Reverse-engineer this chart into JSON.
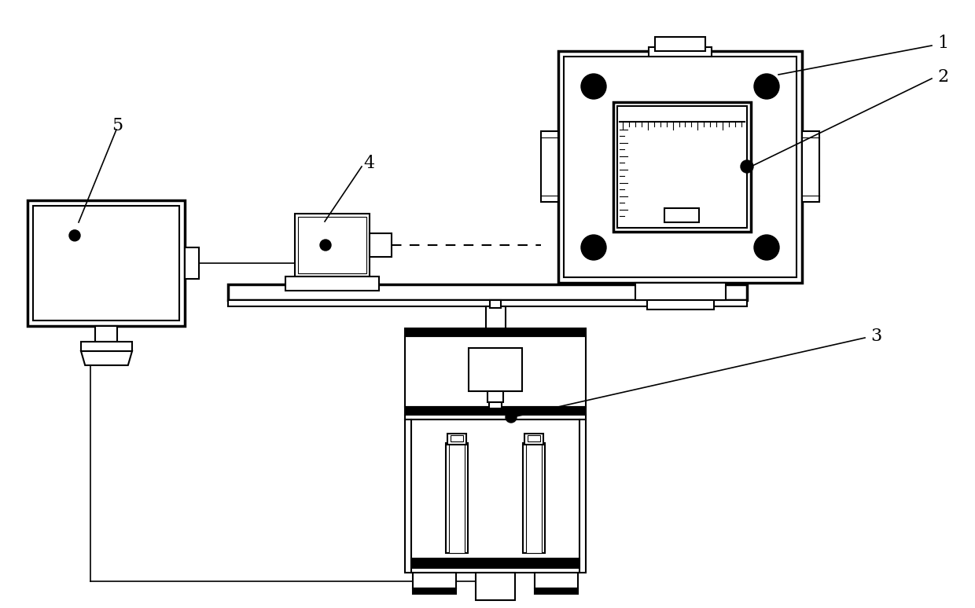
{
  "bg_color": "#ffffff",
  "line_color": "#000000",
  "lw": 1.5,
  "lw_thick": 2.5,
  "lw_thin": 0.8,
  "label_fontsize": 16
}
